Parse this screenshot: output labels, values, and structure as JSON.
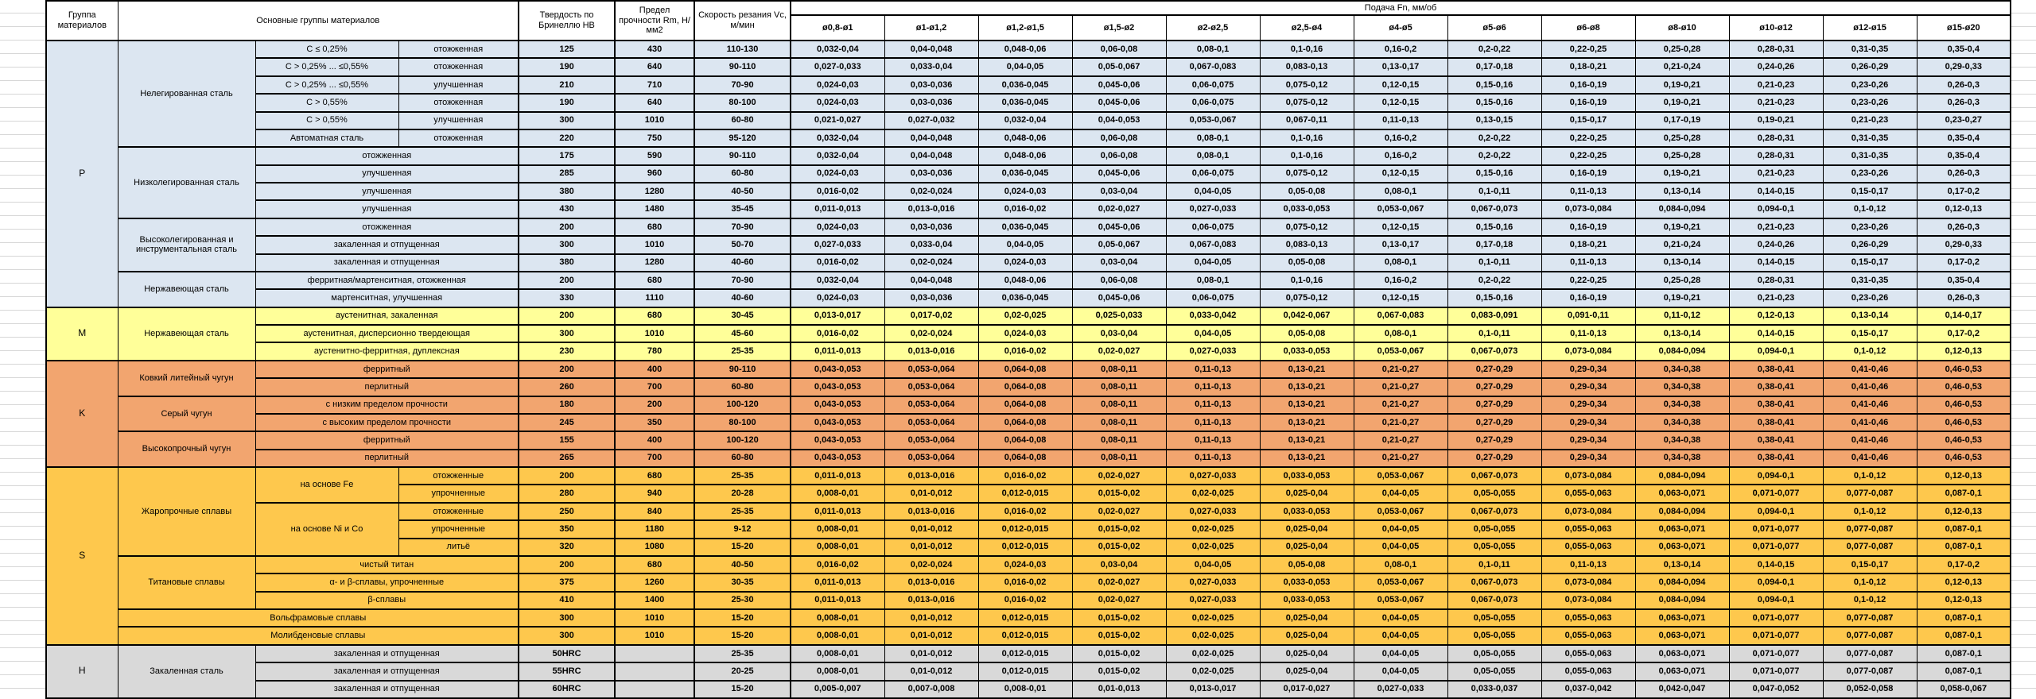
{
  "header": {
    "col_group": "Группа материалов",
    "col_main": "Основные группы материалов",
    "col_hb": "Твердость по Бринеллю HB",
    "col_rm": "Предел прочности Rm, Н/мм2",
    "col_vc": "Скорость резания Vc, м/мин",
    "feed_title": "Подача Fn, мм/об",
    "feed_cols": [
      "ø0,8-ø1",
      "ø1-ø1,2",
      "ø1,2-ø1,5",
      "ø1,5-ø2",
      "ø2-ø2,5",
      "ø2,5-ø4",
      "ø4-ø5",
      "ø5-ø6",
      "ø6-ø8",
      "ø8-ø10",
      "ø10-ø12",
      "ø12-ø15",
      "ø15-ø20"
    ]
  },
  "feed_values": {
    "A": [
      "0,032-0,04",
      "0,04-0,048",
      "0,048-0,06",
      "0,06-0,08",
      "0,08-0,1",
      "0,1-0,16",
      "0,16-0,2",
      "0,2-0,22",
      "0,22-0,25",
      "0,25-0,28",
      "0,28-0,31",
      "0,31-0,35",
      "0,35-0,4"
    ],
    "B": [
      "0,027-0,033",
      "0,033-0,04",
      "0,04-0,05",
      "0,05-0,067",
      "0,067-0,083",
      "0,083-0,13",
      "0,13-0,17",
      "0,17-0,18",
      "0,18-0,21",
      "0,21-0,24",
      "0,24-0,26",
      "0,26-0,29",
      "0,29-0,33"
    ],
    "C": [
      "0,024-0,03",
      "0,03-0,036",
      "0,036-0,045",
      "0,045-0,06",
      "0,06-0,075",
      "0,075-0,12",
      "0,12-0,15",
      "0,15-0,16",
      "0,16-0,19",
      "0,19-0,21",
      "0,21-0,23",
      "0,23-0,26",
      "0,26-0,3"
    ],
    "D": [
      "0,021-0,027",
      "0,027-0,032",
      "0,032-0,04",
      "0,04-0,053",
      "0,053-0,067",
      "0,067-0,11",
      "0,11-0,13",
      "0,13-0,15",
      "0,15-0,17",
      "0,17-0,19",
      "0,19-0,21",
      "0,21-0,23",
      "0,23-0,27"
    ],
    "E": [
      "0,016-0,02",
      "0,02-0,024",
      "0,024-0,03",
      "0,03-0,04",
      "0,04-0,05",
      "0,05-0,08",
      "0,08-0,1",
      "0,1-0,11",
      "0,11-0,13",
      "0,13-0,14",
      "0,14-0,15",
      "0,15-0,17",
      "0,17-0,2"
    ],
    "F": [
      "0,011-0,013",
      "0,013-0,016",
      "0,016-0,02",
      "0,02-0,027",
      "0,027-0,033",
      "0,033-0,053",
      "0,053-0,067",
      "0,067-0,073",
      "0,073-0,084",
      "0,084-0,094",
      "0,094-0,1",
      "0,1-0,12",
      "0,12-0,13"
    ],
    "G": [
      "0,013-0,017",
      "0,017-0,02",
      "0,02-0,025",
      "0,025-0,033",
      "0,033-0,042",
      "0,042-0,067",
      "0,067-0,083",
      "0,083-0,091",
      "0,091-0,11",
      "0,11-0,12",
      "0,12-0,13",
      "0,13-0,14",
      "0,14-0,17"
    ],
    "K": [
      "0,043-0,053",
      "0,053-0,064",
      "0,064-0,08",
      "0,08-0,11",
      "0,11-0,13",
      "0,13-0,21",
      "0,21-0,27",
      "0,27-0,29",
      "0,29-0,34",
      "0,34-0,38",
      "0,38-0,41",
      "0,41-0,46",
      "0,46-0,53"
    ],
    "S": [
      "0,008-0,01",
      "0,01-0,012",
      "0,012-0,015",
      "0,015-0,02",
      "0,02-0,025",
      "0,025-0,04",
      "0,04-0,05",
      "0,05-0,055",
      "0,055-0,063",
      "0,063-0,071",
      "0,071-0,077",
      "0,077-0,087",
      "0,087-0,1"
    ],
    "Z": [
      "0,005-0,007",
      "0,007-0,008",
      "0,008-0,01",
      "0,01-0,013",
      "0,013-0,017",
      "0,017-0,027",
      "0,027-0,033",
      "0,033-0,037",
      "0,037-0,042",
      "0,042-0,047",
      "0,047-0,052",
      "0,052-0,058",
      "0,058-0,067"
    ]
  },
  "groups": [
    {
      "letter": "P",
      "color": "#DCE6F1",
      "materials": [
        {
          "name": "Нелегированная сталь",
          "rows": [
            {
              "subtype": "C ≤ 0,25%",
              "condition": "отожженная",
              "hb": "125",
              "rm": "430",
              "vc": "110-130",
              "feeds": "A"
            },
            {
              "subtype": "C > 0,25% ... ≤0,55%",
              "condition": "отожженная",
              "hb": "190",
              "rm": "640",
              "vc": "90-110",
              "feeds": "B"
            },
            {
              "subtype": "C > 0,25% ... ≤0,55%",
              "condition": "улучшенная",
              "hb": "210",
              "rm": "710",
              "vc": "70-90",
              "feeds": "C"
            },
            {
              "subtype": "C > 0,55%",
              "condition": "отожженная",
              "hb": "190",
              "rm": "640",
              "vc": "80-100",
              "feeds": "C"
            },
            {
              "subtype": "C > 0,55%",
              "condition": "улучшенная",
              "hb": "300",
              "rm": "1010",
              "vc": "60-80",
              "feeds": "D"
            },
            {
              "subtype": "Автоматная сталь",
              "condition": "отожженная",
              "hb": "220",
              "rm": "750",
              "vc": "95-120",
              "feeds": "A"
            }
          ]
        },
        {
          "name": "Низколегированная сталь",
          "rows": [
            {
              "condition": "отожженная",
              "hb": "175",
              "rm": "590",
              "vc": "90-110",
              "feeds": "A"
            },
            {
              "condition": "улучшенная",
              "hb": "285",
              "rm": "960",
              "vc": "60-80",
              "feeds": "C"
            },
            {
              "condition": "улучшенная",
              "hb": "380",
              "rm": "1280",
              "vc": "40-50",
              "feeds": "E"
            },
            {
              "condition": "улучшенная",
              "hb": "430",
              "rm": "1480",
              "vc": "35-45",
              "feeds": "F"
            }
          ]
        },
        {
          "name": "Высоколегированная и инструментальная сталь",
          "rows": [
            {
              "condition": "отожженная",
              "hb": "200",
              "rm": "680",
              "vc": "70-90",
              "feeds": "C"
            },
            {
              "condition": "закаленная и отпущенная",
              "hb": "300",
              "rm": "1010",
              "vc": "50-70",
              "feeds": "B"
            },
            {
              "condition": "закаленная и отпущенная",
              "hb": "380",
              "rm": "1280",
              "vc": "40-60",
              "feeds": "E"
            }
          ]
        },
        {
          "name": "Нержавеющая сталь",
          "rows": [
            {
              "condition": "ферритная/мартенситная, отожженная",
              "hb": "200",
              "rm": "680",
              "vc": "70-90",
              "feeds": "A"
            },
            {
              "condition": "мартенситная, улучшенная",
              "hb": "330",
              "rm": "1110",
              "vc": "40-60",
              "feeds": "C"
            }
          ]
        }
      ]
    },
    {
      "letter": "M",
      "color": "#FFFF99",
      "materials": [
        {
          "name": "Нержавеющая сталь",
          "rows": [
            {
              "condition": "аустенитная, закаленная",
              "hb": "200",
              "rm": "680",
              "vc": "30-45",
              "feeds": "G"
            },
            {
              "condition": "аустенитная, дисперсионно твердеющая",
              "hb": "300",
              "rm": "1010",
              "vc": "45-60",
              "feeds": "E"
            },
            {
              "condition": "аустенитно-ферритная, дуплексная",
              "hb": "230",
              "rm": "780",
              "vc": "25-35",
              "feeds": "F"
            }
          ]
        }
      ]
    },
    {
      "letter": "K",
      "color": "#F2A56F",
      "materials": [
        {
          "name": "Ковкий литейный чугун",
          "rows": [
            {
              "condition": "ферритный",
              "hb": "200",
              "rm": "400",
              "vc": "90-110",
              "feeds": "K"
            },
            {
              "condition": "перлитный",
              "hb": "260",
              "rm": "700",
              "vc": "60-80",
              "feeds": "K"
            }
          ]
        },
        {
          "name": "Серый чугун",
          "rows": [
            {
              "condition": "с низким пределом прочности",
              "hb": "180",
              "rm": "200",
              "vc": "100-120",
              "feeds": "K"
            },
            {
              "condition": "с высоким пределом прочности",
              "hb": "245",
              "rm": "350",
              "vc": "80-100",
              "feeds": "K"
            }
          ]
        },
        {
          "name": "Высокопрочный чугун",
          "rows": [
            {
              "condition": "ферритный",
              "hb": "155",
              "rm": "400",
              "vc": "100-120",
              "feeds": "K"
            },
            {
              "condition": "перлитный",
              "hb": "265",
              "rm": "700",
              "vc": "60-80",
              "feeds": "K"
            }
          ]
        }
      ]
    },
    {
      "letter": "S",
      "color": "#FEC84D",
      "materials": [
        {
          "name": "Жаропрочные сплавы",
          "rows": [
            {
              "subtype": "на основе Fe",
              "sub_span": 2,
              "condition": "отожженные",
              "hb": "200",
              "rm": "680",
              "vc": "25-35",
              "feeds": "F"
            },
            {
              "condition": "упрочненные",
              "hb": "280",
              "rm": "940",
              "vc": "20-28",
              "feeds": "S"
            },
            {
              "subtype": "на основе Ni и Co",
              "sub_span": 3,
              "condition": "отожженные",
              "hb": "250",
              "rm": "840",
              "vc": "25-35",
              "feeds": "F"
            },
            {
              "condition": "упрочненные",
              "hb": "350",
              "rm": "1180",
              "vc": "9-12",
              "feeds": "S"
            },
            {
              "condition": "литьё",
              "hb": "320",
              "rm": "1080",
              "vc": "15-20",
              "feeds": "S"
            }
          ]
        },
        {
          "name": "Титановые сплавы",
          "rows": [
            {
              "condition": "чистый титан",
              "hb": "200",
              "rm": "680",
              "vc": "40-50",
              "feeds": "E"
            },
            {
              "condition": "α- и β-сплавы, упрочненные",
              "hb": "375",
              "rm": "1260",
              "vc": "30-35",
              "feeds": "F"
            },
            {
              "condition": "β-сплавы",
              "hb": "410",
              "rm": "1400",
              "vc": "25-30",
              "feeds": "F"
            }
          ]
        },
        {
          "name": "Вольфрамовые сплавы",
          "full": true,
          "rows": [
            {
              "hb": "300",
              "rm": "1010",
              "vc": "15-20",
              "feeds": "S"
            }
          ]
        },
        {
          "name": "Молибденовые сплавы",
          "full": true,
          "rows": [
            {
              "hb": "300",
              "rm": "1010",
              "vc": "15-20",
              "feeds": "S"
            }
          ]
        }
      ]
    },
    {
      "letter": "H",
      "color": "#D9D9D9",
      "materials": [
        {
          "name": "Закаленная сталь",
          "rows": [
            {
              "condition": "закаленная и отпущенная",
              "hb": "50HRC",
              "rm": "",
              "vc": "25-35",
              "feeds": "S"
            },
            {
              "condition": "закаленная и отпущенная",
              "hb": "55HRC",
              "rm": "",
              "vc": "20-25",
              "feeds": "S"
            },
            {
              "condition": "закаленная и отпущенная",
              "hb": "60HRC",
              "rm": "",
              "vc": "15-20",
              "feeds": "Z"
            }
          ]
        }
      ]
    }
  ],
  "layout_colors": {
    "border": "#000000",
    "gridline": "#d6d6d6",
    "header_bg": "#ffffff"
  }
}
